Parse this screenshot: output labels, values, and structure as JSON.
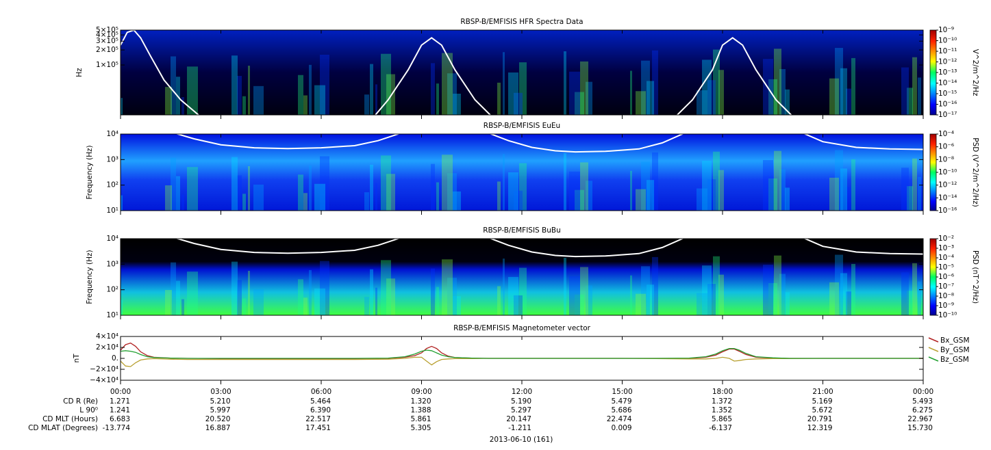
{
  "chart_data": [
    {
      "type": "spectrogram",
      "title": "RBSP-B/EMFISIS  HFR Spectra Data",
      "ylabel": "Hz",
      "log_y": true,
      "ylim": [
        10000,
        500000
      ],
      "yticks": [
        {
          "value": 100000,
          "label": "1×10⁵"
        },
        {
          "value": 200000,
          "label": "2×10⁵"
        },
        {
          "value": 300000,
          "label": "3×10⁵"
        },
        {
          "value": 400000,
          "label": "4×10⁵"
        },
        {
          "value": 500000,
          "label": "5×10⁵"
        }
      ],
      "colorbar_label": "V^2/m^2/Hz",
      "clim": [
        1e-17,
        1e-09
      ],
      "cticks": [
        {
          "value": 1e-09,
          "label": "10⁻⁹"
        },
        {
          "value": 1e-10,
          "label": "10⁻¹⁰"
        },
        {
          "value": 1e-11,
          "label": "10⁻¹¹"
        },
        {
          "value": 1e-12,
          "label": "10⁻¹²"
        },
        {
          "value": 1e-13,
          "label": "10⁻¹³"
        },
        {
          "value": 1e-14,
          "label": "10⁻¹⁴"
        },
        {
          "value": 1e-15,
          "label": "10⁻¹⁵"
        },
        {
          "value": 1e-16,
          "label": "10⁻¹⁶"
        },
        {
          "value": 1e-17,
          "label": "10⁻¹⁷"
        }
      ],
      "xlim": [
        0,
        24
      ],
      "x": [
        0,
        0.2,
        0.4,
        0.6,
        0.9,
        1.3,
        1.8,
        2.5,
        5,
        7.5,
        8,
        8.6,
        9.0,
        9.3,
        9.6,
        10,
        10.6,
        11.2,
        14,
        16.5,
        17.1,
        17.7,
        18.0,
        18.3,
        18.6,
        19,
        19.6,
        20.2,
        24
      ],
      "series": [
        {
          "color": "#ffffff",
          "values": [
            250000,
            450000,
            500000,
            350000,
            150000,
            50000,
            20000,
            8000,
            null,
            8000,
            20000,
            80000,
            250000,
            350000,
            250000,
            80000,
            20000,
            8000,
            null,
            8000,
            20000,
            80000,
            250000,
            350000,
            250000,
            80000,
            20000,
            8000,
            null
          ]
        }
      ]
    },
    {
      "type": "spectrogram",
      "title": "RBSP-B/EMFISIS  EuEu",
      "ylabel": "Frequency (Hz)",
      "log_y": true,
      "ylim": [
        10,
        10000
      ],
      "yticks": [
        {
          "value": 10,
          "label": "10¹"
        },
        {
          "value": 100,
          "label": "10²"
        },
        {
          "value": 1000,
          "label": "10³"
        },
        {
          "value": 10000,
          "label": "10⁴"
        }
      ],
      "colorbar_label": "PSD (V^2/m^2/Hz)",
      "clim": [
        1e-16,
        0.0001
      ],
      "cticks": [
        {
          "value": 0.0001,
          "label": "10⁻⁴"
        },
        {
          "value": 1e-06,
          "label": "10⁻⁶"
        },
        {
          "value": 1e-08,
          "label": "10⁻⁸"
        },
        {
          "value": 1e-10,
          "label": "10⁻¹⁰"
        },
        {
          "value": 1e-12,
          "label": "10⁻¹²"
        },
        {
          "value": 1e-14,
          "label": "10⁻¹⁴"
        },
        {
          "value": 1e-16,
          "label": "10⁻¹⁶"
        }
      ],
      "xlim": [
        0,
        24
      ],
      "x": [
        1.5,
        2.2,
        3,
        4,
        5,
        6,
        7,
        7.7,
        8.3,
        9.5,
        11.0,
        11.6,
        12.3,
        13,
        13.6,
        14.5,
        15.5,
        16.2,
        16.8,
        18,
        20.4,
        21,
        22,
        23,
        24
      ],
      "series": [
        {
          "color": "#ffffff",
          "values": [
            12000,
            6500,
            3800,
            2900,
            2700,
            2900,
            3500,
            5500,
            10000,
            50000,
            11000,
            5500,
            3000,
            2200,
            2000,
            2100,
            2600,
            4500,
            10000,
            50000,
            11000,
            5000,
            3000,
            2600,
            2500
          ]
        }
      ]
    },
    {
      "type": "spectrogram",
      "title": "RBSP-B/EMFISIS  BuBu",
      "ylabel": "Frequency (Hz)",
      "log_y": true,
      "ylim": [
        10,
        10000
      ],
      "yticks": [
        {
          "value": 10,
          "label": "10¹"
        },
        {
          "value": 100,
          "label": "10²"
        },
        {
          "value": 1000,
          "label": "10³"
        },
        {
          "value": 10000,
          "label": "10⁴"
        }
      ],
      "colorbar_label": "PSD (nT^2/Hz)",
      "clim": [
        1e-10,
        0.01
      ],
      "cticks": [
        {
          "value": 0.01,
          "label": "10⁻²"
        },
        {
          "value": 0.001,
          "label": "10⁻³"
        },
        {
          "value": 0.0001,
          "label": "10⁻⁴"
        },
        {
          "value": 1e-05,
          "label": "10⁻⁵"
        },
        {
          "value": 1e-06,
          "label": "10⁻⁶"
        },
        {
          "value": 1e-07,
          "label": "10⁻⁷"
        },
        {
          "value": 1e-08,
          "label": "10⁻⁸"
        },
        {
          "value": 1e-09,
          "label": "10⁻⁹"
        },
        {
          "value": 1e-10,
          "label": "10⁻¹⁰"
        }
      ],
      "xlim": [
        0,
        24
      ],
      "x": [
        1.5,
        2.2,
        3,
        4,
        5,
        6,
        7,
        7.7,
        8.3,
        9.5,
        11.0,
        11.6,
        12.3,
        13,
        13.6,
        14.5,
        15.5,
        16.2,
        16.8,
        18,
        20.4,
        21,
        22,
        23,
        24
      ],
      "series": [
        {
          "color": "#ffffff",
          "values": [
            12000,
            6500,
            3800,
            2900,
            2700,
            2900,
            3500,
            5500,
            10000,
            50000,
            11000,
            5500,
            3000,
            2200,
            2000,
            2100,
            2600,
            4500,
            10000,
            50000,
            11000,
            5000,
            3000,
            2600,
            2500
          ]
        }
      ]
    },
    {
      "type": "line",
      "title": "RBSP-B/EMFISIS  Magnetometer vector",
      "ylabel": "nT",
      "log_y": false,
      "ylim": [
        -40000,
        40000
      ],
      "yticks": [
        {
          "value": -40000,
          "label": "−4×10⁴"
        },
        {
          "value": -20000,
          "label": "−2×10⁴"
        },
        {
          "value": 0,
          "label": "0."
        },
        {
          "value": 20000,
          "label": "2×10⁴"
        },
        {
          "value": 40000,
          "label": "4×10⁴"
        }
      ],
      "xlim": [
        0,
        24
      ],
      "xticks": [
        {
          "value": 0,
          "label": "00:00"
        },
        {
          "value": 3,
          "label": "03:00"
        },
        {
          "value": 6,
          "label": "06:00"
        },
        {
          "value": 9,
          "label": "09:00"
        },
        {
          "value": 12,
          "label": "12:00"
        },
        {
          "value": 15,
          "label": "15:00"
        },
        {
          "value": 18,
          "label": "18:00"
        },
        {
          "value": 21,
          "label": "21:00"
        },
        {
          "value": 24,
          "label": "00:00"
        }
      ],
      "x": [
        0,
        0.15,
        0.3,
        0.45,
        0.6,
        0.8,
        1.0,
        1.5,
        2,
        3,
        4,
        5,
        6,
        7,
        8,
        8.5,
        8.8,
        9.0,
        9.15,
        9.3,
        9.45,
        9.6,
        9.8,
        10,
        10.5,
        11,
        12,
        13,
        14,
        15,
        16,
        17,
        17.5,
        17.8,
        18.0,
        18.2,
        18.35,
        18.5,
        18.7,
        19,
        19.5,
        20,
        21,
        22,
        23,
        24
      ],
      "series": [
        {
          "name": "Bx_GSM",
          "color": "#b22222",
          "values": [
            15000,
            25000,
            28000,
            22000,
            12000,
            5000,
            2000,
            500,
            0,
            -500,
            -1000,
            -1000,
            -1000,
            -500,
            0,
            2000,
            5000,
            10000,
            18000,
            22000,
            18000,
            10000,
            4000,
            1500,
            500,
            0,
            0,
            0,
            0,
            0,
            0,
            0,
            2000,
            6000,
            12000,
            17000,
            17000,
            13000,
            7000,
            2000,
            500,
            0,
            0,
            0,
            0,
            0
          ]
        },
        {
          "name": "By_GSM",
          "color": "#b8a030",
          "values": [
            -5000,
            -14000,
            -15000,
            -8000,
            -3000,
            -1000,
            -500,
            -1500,
            -2000,
            -2000,
            -2000,
            -2000,
            -2000,
            -2000,
            -1500,
            0,
            2000,
            2000,
            -5000,
            -12000,
            -6000,
            -2000,
            -1000,
            -500,
            -500,
            0,
            0,
            0,
            0,
            0,
            -500,
            -1000,
            -1000,
            0,
            2000,
            0,
            -5000,
            -4000,
            -2000,
            -1000,
            -500,
            -500,
            0,
            0,
            0,
            0
          ]
        },
        {
          "name": "Bz_GSM",
          "color": "#22a030",
          "values": [
            13000,
            14000,
            13000,
            11000,
            7000,
            3000,
            1500,
            500,
            0,
            0,
            0,
            0,
            0,
            0,
            500,
            3000,
            8000,
            13000,
            15000,
            14000,
            10000,
            6000,
            3000,
            1500,
            500,
            0,
            0,
            0,
            0,
            0,
            0,
            500,
            3000,
            8000,
            14000,
            18000,
            18000,
            15000,
            9000,
            3000,
            1000,
            0,
            0,
            0,
            0,
            0
          ]
        }
      ]
    }
  ],
  "ephemeris": [
    {
      "label": "CD R (Re)",
      "values": [
        "1.271",
        "5.210",
        "5.464",
        "1.320",
        "5.190",
        "5.479",
        "1.372",
        "5.169",
        "5.493"
      ]
    },
    {
      "label": "L 90⁰",
      "values": [
        "1.241",
        "5.997",
        "6.390",
        "1.388",
        "5.297",
        "5.686",
        "1.352",
        "5.672",
        "6.275"
      ]
    },
    {
      "label": "CD MLT (Hours)",
      "values": [
        "6.683",
        "20.520",
        "22.517",
        "5.861",
        "20.147",
        "22.474",
        "5.865",
        "20.791",
        "22.967"
      ]
    },
    {
      "label": "CD MLAT (Degrees)",
      "values": [
        "-13.774",
        "16.887",
        "17.451",
        "5.305",
        "-1.211",
        "0.009",
        "-6.137",
        "12.319",
        "15.730"
      ]
    }
  ],
  "date": "2013-06-10 (161)"
}
